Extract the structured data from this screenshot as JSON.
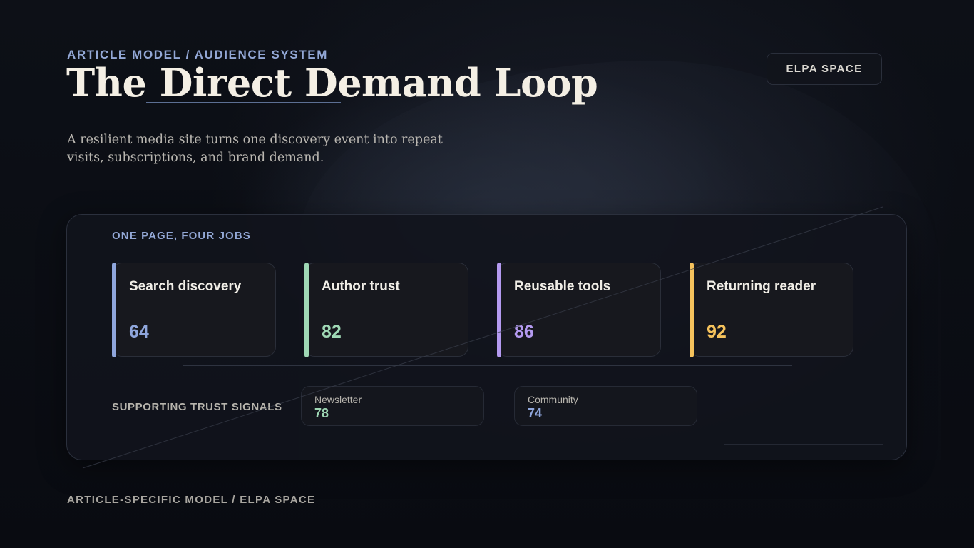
{
  "header": {
    "eyebrow": "ARTICLE MODEL / AUDIENCE SYSTEM",
    "title": "The Direct Demand Loop",
    "subtitle": "A resilient media site turns one discovery event into repeat visits, subscriptions, and brand demand.",
    "brand_button": "ELPA SPACE"
  },
  "panel": {
    "heading": "ONE PAGE, FOUR JOBS",
    "jobs": [
      {
        "label": "Search discovery",
        "value": "64",
        "color": "#8fa6dc"
      },
      {
        "label": "Author trust",
        "value": "82",
        "color": "#9fd8b5"
      },
      {
        "label": "Reusable tools",
        "value": "86",
        "color": "#b49af0"
      },
      {
        "label": "Returning reader",
        "value": "92",
        "color": "#f5c25c"
      }
    ],
    "support_label": "SUPPORTING TRUST SIGNALS",
    "signals": [
      {
        "label": "Newsletter",
        "value": "78",
        "color": "#9fd8b5"
      },
      {
        "label": "Community",
        "value": "74",
        "color": "#8fa6dc"
      }
    ]
  },
  "footer": {
    "text": "ARTICLE-SPECIFIC MODEL / ELPA SPACE"
  }
}
